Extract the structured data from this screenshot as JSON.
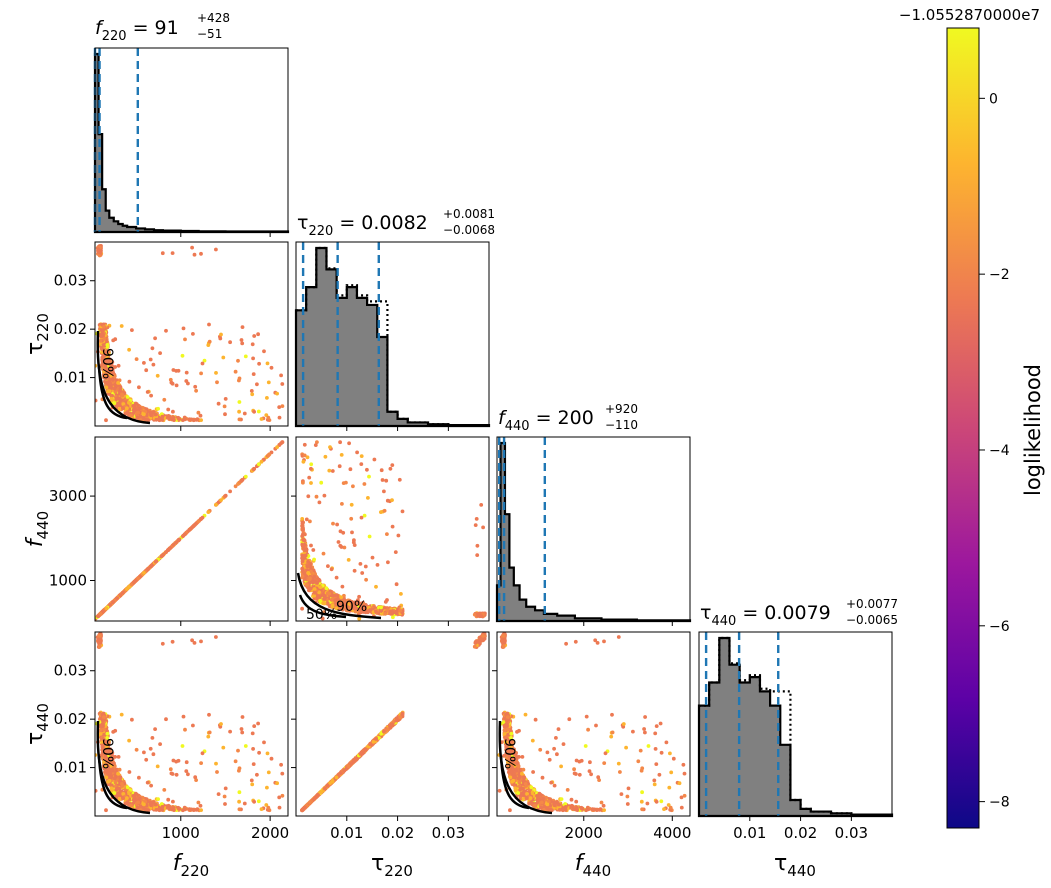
{
  "figure": {
    "colorbar": {
      "label": "loglikelihood",
      "offset_text": "−1.0552870000e7",
      "range": [
        -8.3,
        0.8
      ],
      "ticks": [
        0,
        -2,
        -4,
        -6,
        -8
      ],
      "tick_labels": [
        "0",
        "−2",
        "−4",
        "−6",
        "−8"
      ],
      "colormap": "plasma",
      "colors": [
        "#0d0887",
        "#5c01a6",
        "#9c179e",
        "#cc4778",
        "#ed7953",
        "#fdb42f",
        "#f0f921"
      ]
    },
    "params": [
      {
        "sym": "f",
        "sub": "220",
        "range": [
          40,
          2200
        ],
        "ticks": [
          1000,
          2000
        ],
        "tick_labels": [
          "1000",
          "2000"
        ]
      },
      {
        "sym": "τ",
        "sub": "220",
        "range": [
          0,
          0.038
        ],
        "ticks": [
          0.01,
          0.02,
          0.03
        ],
        "tick_labels": [
          "0.01",
          "0.02",
          "0.03"
        ]
      },
      {
        "sym": "f",
        "sub": "440",
        "range": [
          40,
          4400
        ],
        "ticks": [
          1000,
          3000
        ],
        "tick_labels": [
          "1000",
          "3000"
        ],
        "x_ticks": [
          2000,
          4000
        ],
        "x_tick_labels": [
          "2000",
          "4000"
        ]
      },
      {
        "sym": "τ",
        "sub": "440",
        "range": [
          0,
          0.038
        ],
        "ticks": [
          0.01,
          0.02,
          0.03
        ],
        "tick_labels": [
          "0.01",
          "0.02",
          "0.03"
        ]
      }
    ],
    "titles": [
      {
        "sym": "f",
        "sub": "220",
        "eq": " = 91",
        "sup": "+428",
        "low": "−51"
      },
      {
        "sym": "τ",
        "sub": "220",
        "eq": " = 0.0082",
        "sup": "+0.0081",
        "low": "−0.0068"
      },
      {
        "sym": "f",
        "sub": "440",
        "eq": " = 200",
        "sup": "+920",
        "low": "−110"
      },
      {
        "sym": "τ",
        "sub": "440",
        "eq": " = 0.0079",
        "sup": "+0.0077",
        "low": "−0.0065"
      }
    ],
    "contour_labels": {
      "inner": "50%",
      "outer": "90%"
    },
    "colors": {
      "hist_fill": "#808080",
      "quantile_line": "#1f77b4",
      "contour": "#000000"
    }
  },
  "chart_data": {
    "type": "corner",
    "parameters": [
      "f_220",
      "tau_220",
      "f_440",
      "tau_440"
    ],
    "medians": [
      91,
      0.0082,
      200,
      0.0079
    ],
    "quantiles": [
      [
        40,
        91,
        519
      ],
      [
        0.0014,
        0.0082,
        0.0163
      ],
      [
        90,
        200,
        1120
      ],
      [
        0.0014,
        0.0079,
        0.0156
      ]
    ],
    "histograms": [
      {
        "param": "f_220",
        "bins": [
          40,
          80,
          120,
          160,
          200,
          250,
          300,
          350,
          400,
          500,
          600,
          700,
          800,
          1000,
          1200,
          1500,
          2200
        ],
        "values": [
          1.0,
          0.55,
          0.24,
          0.12,
          0.08,
          0.06,
          0.045,
          0.035,
          0.028,
          0.02,
          0.015,
          0.01,
          0.008,
          0.006,
          0.004,
          0.003
        ]
      },
      {
        "param": "tau_220",
        "bins": [
          0,
          0.002,
          0.004,
          0.006,
          0.008,
          0.01,
          0.012,
          0.014,
          0.016,
          0.018,
          0.02,
          0.022,
          0.026,
          0.03,
          0.038
        ],
        "values": [
          0.65,
          0.78,
          1.0,
          0.88,
          0.72,
          0.78,
          0.72,
          0.68,
          0.5,
          0.08,
          0.04,
          0.02,
          0.01,
          0.005
        ]
      },
      {
        "param": "f_440",
        "bins": [
          40,
          120,
          220,
          320,
          420,
          550,
          700,
          900,
          1100,
          1400,
          1800,
          2400,
          3200,
          4400
        ],
        "values": [
          0.2,
          1.0,
          0.6,
          0.3,
          0.2,
          0.12,
          0.08,
          0.06,
          0.04,
          0.03,
          0.015,
          0.008,
          0.004
        ]
      },
      {
        "param": "tau_440",
        "bins": [
          0,
          0.002,
          0.004,
          0.006,
          0.008,
          0.01,
          0.012,
          0.014,
          0.016,
          0.018,
          0.02,
          0.022,
          0.026,
          0.03,
          0.038
        ],
        "values": [
          0.62,
          0.75,
          1.0,
          0.85,
          0.75,
          0.78,
          0.7,
          0.62,
          0.4,
          0.09,
          0.04,
          0.025,
          0.015,
          0.008
        ]
      }
    ],
    "scatter_trend": "points concentrated at low values with an anti-correlated tail between f and tau; f_220 vs f_440 and tau_220 vs tau_440 lie on straight lines",
    "credible_levels": [
      "50%",
      "90%"
    ]
  }
}
